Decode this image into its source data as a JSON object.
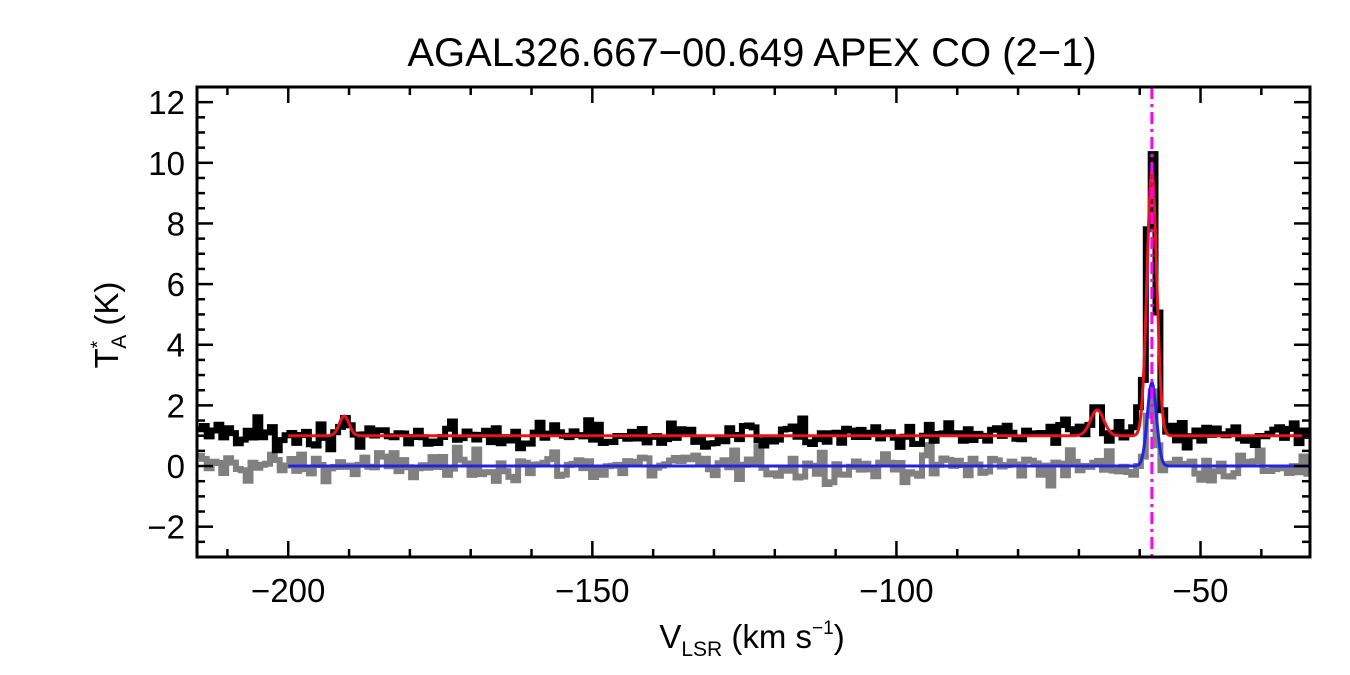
{
  "chart_data": {
    "type": "line",
    "title": "AGAL326.667−00.649  APEX CO (2−1)",
    "xlabel": {
      "main": "V",
      "sub": "LSR",
      "unit_prefix": " (km s",
      "unit_exp": "−1",
      "unit_suffix": ")"
    },
    "ylabel": {
      "main": "T",
      "sup": "*",
      "sub": "A",
      "unit": " (K)"
    },
    "xlim": [
      -215,
      -32
    ],
    "ylim": [
      -3,
      12.5
    ],
    "x_ticks": [
      -200,
      -150,
      -100,
      -50
    ],
    "x_tick_labels": [
      "−200",
      "−150",
      "−100",
      "−50"
    ],
    "y_ticks": [
      -2,
      0,
      2,
      4,
      6,
      8,
      10,
      12
    ],
    "y_tick_labels": [
      "−2",
      "0",
      "2",
      "4",
      "6",
      "8",
      "10",
      "12"
    ],
    "x_minor_step": 10,
    "y_minor_step": 0.5,
    "marker_velocity": -58.0,
    "series": [
      {
        "role": "observed-offset",
        "style": "histogram",
        "color": "#000000",
        "x_range": [
          -215,
          -32
        ],
        "channel_width": 0.8,
        "baseline": 1.0,
        "noise": 0.22,
        "components": [
          {
            "center": -190.8,
            "amplitude": 0.65,
            "sigma": 0.8
          },
          {
            "center": -67.0,
            "amplitude": 0.85,
            "sigma": 1.1
          },
          {
            "center": -58.0,
            "amplitude": 9.5,
            "sigma": 0.75
          },
          {
            "center": -60.3,
            "amplitude": 0.6,
            "sigma": 0.6
          }
        ]
      },
      {
        "role": "observed-residual",
        "style": "histogram",
        "color": "#808080",
        "x_range": [
          -215,
          -32
        ],
        "channel_width": 0.8,
        "baseline": 0.0,
        "noise": 0.25,
        "components": [
          {
            "center": -58.0,
            "amplitude": 2.9,
            "sigma": 0.6
          }
        ]
      },
      {
        "role": "fit-offset",
        "style": "line",
        "color": "#e8141c",
        "x_range": [
          -200,
          -32
        ],
        "baseline": 1.0,
        "components": [
          {
            "center": -190.8,
            "amplitude": 0.65,
            "sigma": 0.8
          },
          {
            "center": -67.0,
            "amplitude": 0.85,
            "sigma": 1.1
          },
          {
            "center": -58.0,
            "amplitude": 8.7,
            "sigma": 0.8
          }
        ]
      },
      {
        "role": "fit-single",
        "style": "line",
        "color": "#2323e6",
        "x_range": [
          -200,
          -32
        ],
        "baseline": 0.0,
        "components": [
          {
            "center": -58.0,
            "amplitude": 2.75,
            "sigma": 0.75
          }
        ]
      }
    ],
    "colors": {
      "marker": "#ff00ff",
      "axes": "#000000"
    }
  }
}
